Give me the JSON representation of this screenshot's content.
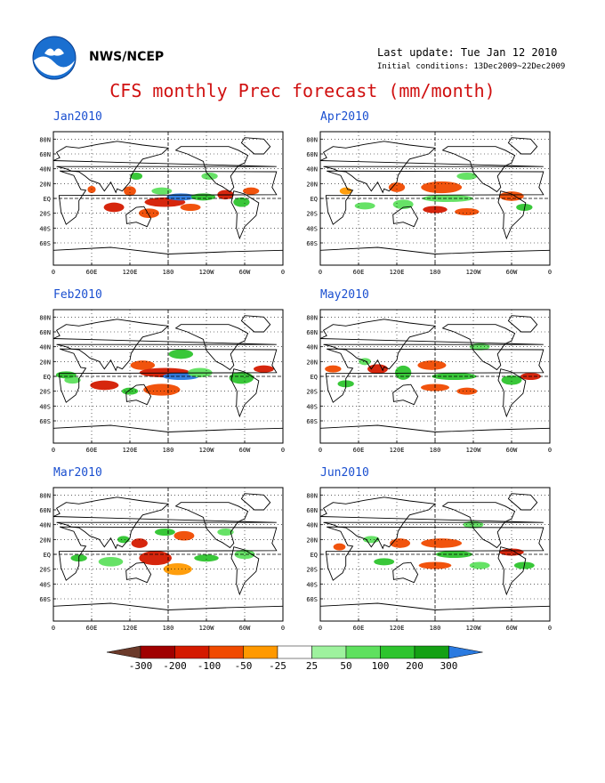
{
  "header": {
    "org": "NWS/NCEP",
    "last_update": "Last update: Tue Jan 12 2010",
    "initial_conditions": "Initial conditions: 13Dec2009~22Dec2009",
    "title": "CFS monthly Prec forecast (mm/month)",
    "logo": "noaa-logo"
  },
  "axes": {
    "lat_labels": [
      "80N",
      "60N",
      "40N",
      "20N",
      "EQ",
      "20S",
      "40S",
      "60S"
    ],
    "lon_labels": [
      "0",
      "60E",
      "120E",
      "180",
      "120W",
      "60W",
      "0"
    ]
  },
  "panels": [
    {
      "title": "Jan2010"
    },
    {
      "title": "Apr2010"
    },
    {
      "title": "Feb2010"
    },
    {
      "title": "May2010"
    },
    {
      "title": "Mar2010"
    },
    {
      "title": "Jun2010"
    }
  ],
  "colorbar": {
    "labels": [
      "-300",
      "-200",
      "-100",
      "-50",
      "-25",
      "25",
      "50",
      "100",
      "200",
      "300"
    ],
    "colors": [
      "#6b3a2a",
      "#a00000",
      "#d41a00",
      "#f04a00",
      "#ff9900",
      "#ffffff",
      "#9ef29e",
      "#5ee05e",
      "#2ec42e",
      "#14a014",
      "#2a7ae0"
    ]
  }
}
